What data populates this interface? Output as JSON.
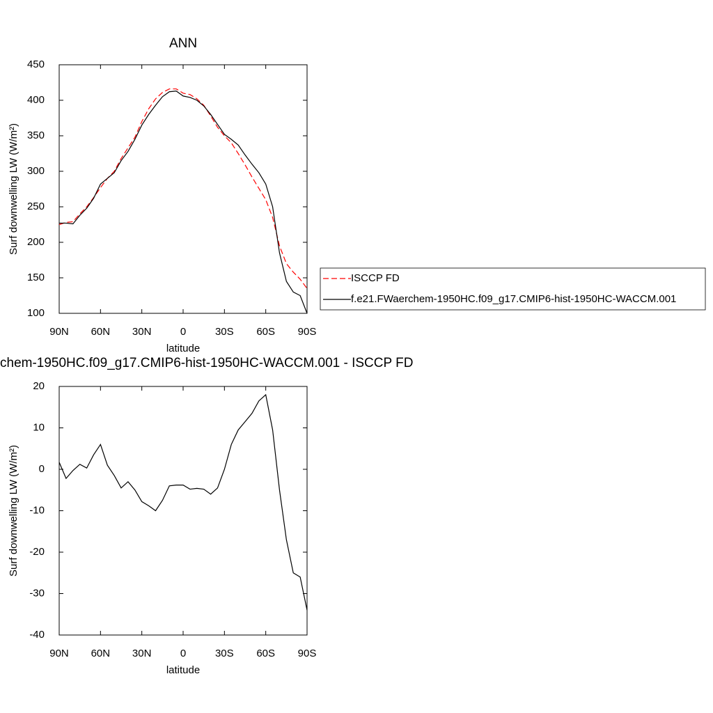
{
  "chart_data": [
    {
      "type": "line",
      "title": "ANN",
      "xlabel": "latitude",
      "ylabel": "Surf downwelling LW (W/m²)",
      "x": [
        90,
        85,
        80,
        75,
        70,
        65,
        60,
        55,
        50,
        45,
        40,
        35,
        30,
        25,
        20,
        15,
        10,
        5,
        0,
        -5,
        -10,
        -15,
        -20,
        -25,
        -30,
        -35,
        -40,
        -45,
        -50,
        -55,
        -60,
        -65,
        -70,
        -75,
        -80,
        -85,
        -90
      ],
      "series": [
        {
          "name": "ISCCP FD",
          "color": "#ff0000",
          "dash": true,
          "values": [
            225,
            228,
            229,
            240,
            250,
            263,
            277,
            290,
            300,
            318,
            333,
            348,
            370,
            388,
            402,
            411,
            416,
            416,
            410,
            408,
            402,
            393,
            378,
            362,
            350,
            340,
            325,
            309,
            292,
            276,
            260,
            235,
            195,
            170,
            158,
            148,
            135
          ]
        },
        {
          "name": "f.e21.FWaerchem-1950HC.f09_g17.CMIP6-hist-1950HC-WACCM.001",
          "color": "#000000",
          "dash": false,
          "values": [
            227,
            227,
            226,
            238,
            248,
            262,
            282,
            290,
            298,
            315,
            328,
            345,
            365,
            380,
            393,
            405,
            412,
            413,
            406,
            404,
            400,
            392,
            380,
            366,
            352,
            345,
            337,
            323,
            310,
            298,
            282,
            250,
            185,
            145,
            130,
            125,
            100
          ]
        }
      ],
      "xlim": [
        90,
        -90
      ],
      "xticks": [
        {
          "value": 90,
          "label": "90N"
        },
        {
          "value": 60,
          "label": "60N"
        },
        {
          "value": 30,
          "label": "30N"
        },
        0,
        {
          "value": -30,
          "label": "30S"
        },
        {
          "value": -60,
          "label": "60S"
        },
        {
          "value": -90,
          "label": "90S"
        }
      ],
      "ylim": [
        100,
        450
      ],
      "yticks": [
        100,
        150,
        200,
        250,
        300,
        350,
        400,
        450
      ],
      "legend": "right"
    },
    {
      "type": "line",
      "title": "chem-1950HC.f09_g17.CMIP6-hist-1950HC-WACCM.001 - ISCCP FD",
      "xlabel": "latitude",
      "ylabel": "Surf downwelling LW (W/m²)",
      "x": [
        90,
        85,
        80,
        75,
        70,
        65,
        60,
        55,
        50,
        45,
        40,
        35,
        30,
        25,
        20,
        15,
        10,
        5,
        0,
        -5,
        -10,
        -15,
        -20,
        -25,
        -30,
        -35,
        -40,
        -45,
        -50,
        -55,
        -60,
        -65,
        -70,
        -75,
        -80,
        -85,
        -90
      ],
      "series": [
        {
          "color": "#000000",
          "dash": false,
          "values": [
            1.7,
            -2.2,
            -0.3,
            1.2,
            0.3,
            3.5,
            6.0,
            1.0,
            -1.5,
            -4.5,
            -3.0,
            -5.0,
            -7.8,
            -8.8,
            -10.0,
            -7.5,
            -4.0,
            -3.8,
            -3.8,
            -4.8,
            -4.6,
            -4.8,
            -6.0,
            -4.5,
            0,
            6,
            9.5,
            11.5,
            13.5,
            16.5,
            18.0,
            9.5,
            -5,
            -17,
            -25,
            -26,
            -34
          ]
        }
      ],
      "xlim": [
        90,
        -90
      ],
      "xticks": [
        {
          "value": 90,
          "label": "90N"
        },
        {
          "value": 60,
          "label": "60N"
        },
        {
          "value": 30,
          "label": "30N"
        },
        0,
        {
          "value": -30,
          "label": "30S"
        },
        {
          "value": -60,
          "label": "60S"
        },
        {
          "value": -90,
          "label": "90S"
        }
      ],
      "ylim": [
        -40,
        20
      ],
      "yticks": [
        -40,
        -30,
        -20,
        -10,
        0,
        10,
        20
      ]
    }
  ]
}
